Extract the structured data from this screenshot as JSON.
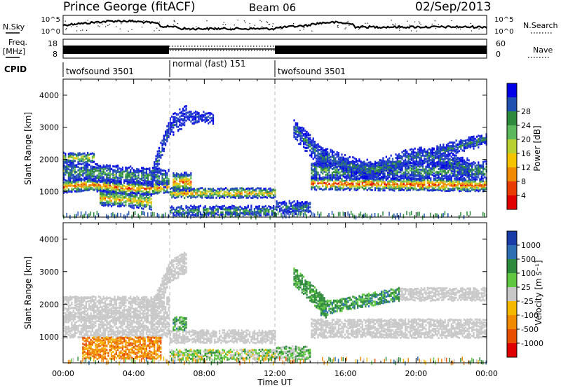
{
  "header": {
    "station": "Prince George (fitACF)",
    "beam": "Beam 06",
    "date": "02/Sep/2013"
  },
  "panels": {
    "nsky_label": "N.Sky",
    "nsky_ticks": [
      "10^5",
      "10^0"
    ],
    "nsearch_label": "N.Search",
    "nsearch_ticks": [
      "10^5",
      "10^0"
    ],
    "freq_label_line1": "Freq.",
    "freq_label_line2": "[MHz]",
    "freq_ticks": [
      "18",
      "8"
    ],
    "nave_label": "Nave",
    "nave_ticks": [
      "60",
      "0"
    ],
    "cpid_label": "CPID",
    "cpid_segments": [
      {
        "label": "twofsound 3501",
        "start_hour": 0,
        "end_hour": 6
      },
      {
        "label": "normal (fast) 151",
        "start_hour": 6,
        "end_hour": 12
      },
      {
        "label": "twofsound 3501",
        "start_hour": 12,
        "end_hour": 24
      }
    ]
  },
  "chart_data": [
    {
      "type": "heatmap",
      "name": "power",
      "ylabel": "Slant Range [km]",
      "yticks": [
        "1000",
        "2000",
        "3000",
        "4000"
      ],
      "ylim": [
        200,
        4500
      ],
      "xlim": [
        0,
        24
      ],
      "colorbar_label": "Power [dB]",
      "colorbar_ticks": [
        "4",
        "8",
        "12",
        "16",
        "20",
        "24",
        "28"
      ],
      "colorbar_colors": [
        "#0000e8",
        "#2050b0",
        "#2e8a3c",
        "#5cb85c",
        "#b8d030",
        "#f5c400",
        "#f08a00",
        "#e83c00",
        "#e00000"
      ],
      "features": [
        {
          "start_hour": 0,
          "end_hour": 6,
          "range_km": [
            900,
            1500
          ]
        },
        {
          "start_hour": 2,
          "end_hour": 5,
          "range_km": [
            500,
            1000
          ]
        },
        {
          "start_hour": 6.2,
          "end_hour": 11.8,
          "range_km": [
            800,
            1100
          ]
        },
        {
          "start_hour": 14,
          "end_hour": 24,
          "range_km": [
            1000,
            1500
          ]
        }
      ]
    },
    {
      "type": "heatmap",
      "name": "velocity",
      "ylabel": "Slant Range [km]",
      "yticks": [
        "1000",
        "2000",
        "3000",
        "4000"
      ],
      "ylim": [
        200,
        4500
      ],
      "xlim": [
        0,
        24
      ],
      "xticks": [
        "00:00",
        "04:00",
        "08:00",
        "12:00",
        "16:00",
        "20:00",
        "00:00"
      ],
      "xlabel": "Time UT",
      "colorbar_label": "Velocity [m s⁻¹]",
      "colorbar_ticks": [
        "1000",
        "500",
        "100",
        "25",
        "-25",
        "-100",
        "-500",
        "-1000"
      ],
      "colorbar_colors": [
        "#1a3ca8",
        "#2e6fb4",
        "#2e8a3c",
        "#5fc840",
        "#c8c8c8",
        "#f5b800",
        "#f08a00",
        "#e85000",
        "#e00000"
      ]
    }
  ]
}
